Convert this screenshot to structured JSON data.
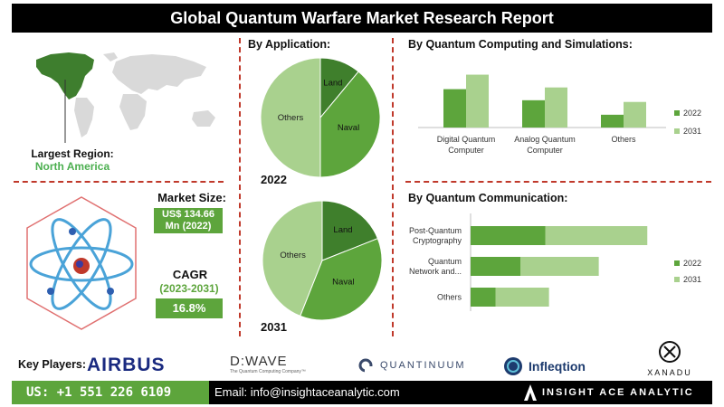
{
  "header": {
    "title": "Global Quantum Warfare Market Research Report"
  },
  "region": {
    "label": "Largest Region:",
    "value": "North America"
  },
  "market_size": {
    "label": "Market Size:",
    "value_line1": "US$ 134.66",
    "value_line2": "Mn (2022)"
  },
  "cagr": {
    "label": "CAGR",
    "years": "(2023-2031)",
    "value": "16.8%"
  },
  "application": {
    "title": "By  Application:",
    "year_2022": "2022",
    "year_2031": "2031"
  },
  "computing": {
    "title": "By Quantum Computing and Simulations:"
  },
  "communication": {
    "title": "By Quantum Communication:"
  },
  "colors": {
    "dark_green": "#5da53c",
    "light_green": "#a9d18e",
    "red_dash": "#c0392b"
  },
  "chart_data": [
    {
      "type": "pie",
      "year": "2022",
      "labels": [
        "Land",
        "Naval",
        "Others"
      ],
      "values": [
        11,
        39,
        50
      ]
    },
    {
      "type": "pie",
      "year": "2031",
      "labels": [
        "Land",
        "Naval",
        "Others"
      ],
      "values": [
        19,
        37,
        44
      ]
    },
    {
      "type": "bar",
      "title": "By Quantum Computing and Simulations:",
      "categories": [
        "Digital Quantum Computer",
        "Analog Quantum Computer",
        "Others"
      ],
      "series": [
        {
          "name": "2022",
          "values": [
            45,
            32,
            15
          ]
        },
        {
          "name": "2031",
          "values": [
            62,
            47,
            30
          ]
        }
      ],
      "legend": "right"
    },
    {
      "type": "bar",
      "orientation": "horizontal",
      "stacked": true,
      "title": "By Quantum Communication:",
      "categories": [
        "Post-Quantum Cryptography",
        "Quantum Network and...",
        "Others"
      ],
      "series": [
        {
          "name": "2022",
          "values": [
            60,
            40,
            20
          ]
        },
        {
          "name": "2031",
          "values": [
            82,
            63,
            43
          ]
        }
      ],
      "legend": "right"
    }
  ],
  "players": {
    "label": "Key Players:",
    "airbus": "AIRBUS",
    "dwave": "D:WAVE",
    "dwave_tag": "The Quantum Computing Company™",
    "quantinuum": "QUANTINUUM",
    "infleqtion": "Infleqtion",
    "xanadu": "XANADU"
  },
  "footer": {
    "phone": "US: +1 551 226 6109",
    "email": "Email: info@insightaceanalytic.com",
    "brand": "INSIGHT ACE ANALYTIC"
  }
}
